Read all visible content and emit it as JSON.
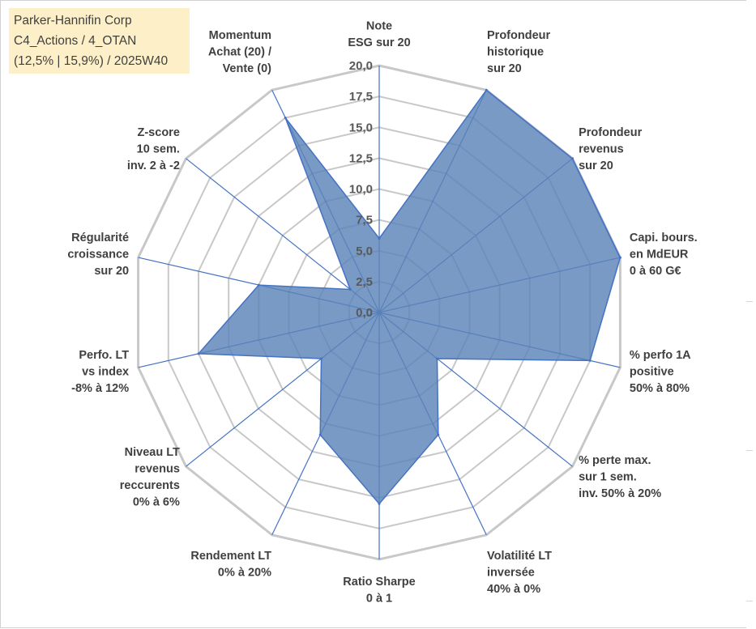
{
  "info": {
    "company": "Parker-Hannifin Corp",
    "portfolio": "C4_Actions / 4_OTAN",
    "perf": "(12,5% | 15,9%) / 2025W40"
  },
  "colors": {
    "fill": "#5b84b8",
    "stroke": "#4472c4",
    "grid": "#c8c8c8",
    "spoke": "#4472c4",
    "box": "#fdf0c8"
  },
  "chart_data": {
    "type": "radar",
    "title": "",
    "rmin": 0,
    "rmax": 20,
    "ticks": [
      "0,0",
      "2,5",
      "5,0",
      "7,5",
      "10,0",
      "12,5",
      "15,0",
      "17,5",
      "20,0"
    ],
    "categories": [
      [
        "Note",
        "ESG sur 20"
      ],
      [
        "Profondeur",
        "historique",
        "sur 20"
      ],
      [
        "Profondeur",
        "revenus",
        "sur 20"
      ],
      [
        "Capi. bours.",
        "en MdEUR",
        "0 à 60 G€"
      ],
      [
        "% perfo 1A",
        "positive",
        "50% à 80%"
      ],
      [
        "% perte max.",
        "sur 1 sem.",
        "inv. 50% à 20%"
      ],
      [
        "Volatilité LT",
        "inversée",
        "40% à 0%"
      ],
      [
        "Ratio Sharpe",
        "0 à 1"
      ],
      [
        "Rendement LT",
        "0% à 20%"
      ],
      [
        "Niveau LT",
        "revenus",
        "reccurents",
        "0% à 6%"
      ],
      [
        "Perfo. LT",
        "vs index",
        "-8% à 12%"
      ],
      [
        "Régularité",
        "croissance",
        "sur 20"
      ],
      [
        "Z-score",
        "10 sem.",
        "inv. 2 à -2"
      ],
      [
        "Momentum",
        "Achat (20) /",
        "Vente (0)"
      ]
    ],
    "series": [
      {
        "name": "Parker-Hannifin Corp",
        "values": [
          6,
          20,
          20,
          20,
          17.5,
          6,
          11,
          15.5,
          11,
          6,
          15,
          10,
          3,
          17.5
        ]
      }
    ]
  }
}
